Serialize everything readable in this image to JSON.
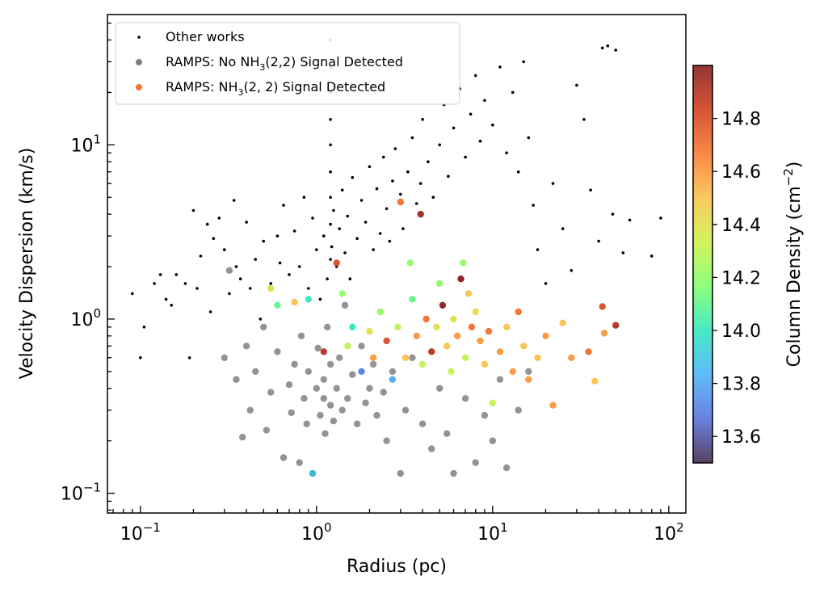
{
  "chart_data": {
    "type": "scatter",
    "x_scale": "log",
    "y_scale": "log",
    "xlabel": "Radius (pc)",
    "ylabel": "Velocity Dispersion (km/s)",
    "xlim": [
      0.065,
      125
    ],
    "ylim": [
      0.077,
      56
    ],
    "x_ticks": [
      {
        "value": 0.1,
        "base": "10",
        "exp": "−1"
      },
      {
        "value": 1,
        "base": "10",
        "exp": "0"
      },
      {
        "value": 10,
        "base": "10",
        "exp": "1"
      },
      {
        "value": 100,
        "base": "10",
        "exp": "2"
      }
    ],
    "y_ticks": [
      {
        "value": 0.1,
        "base": "10",
        "exp": "−1"
      },
      {
        "value": 1,
        "base": "10",
        "exp": "0"
      },
      {
        "value": 10,
        "base": "10",
        "exp": "1"
      }
    ],
    "legend": {
      "position": "top-left",
      "entries": [
        {
          "label": "Other works",
          "marker_color": "#000000",
          "marker": "small-dot"
        },
        {
          "label_pre": "RAMPS: No NH",
          "label_sub": "3",
          "label_post": "(2,2) Signal Detected",
          "marker_color": "#808080",
          "marker": "dot"
        },
        {
          "label_pre": "RAMPS: NH",
          "label_sub": "3",
          "label_post": "(2, 2) Signal Detected",
          "marker_color": "#f07a30",
          "marker": "dot"
        }
      ]
    },
    "colorbar": {
      "label_pre": "Column Density (cm",
      "label_sup": "−2",
      "label_post": ")",
      "vmin": 13.5,
      "vmax": 15.0,
      "ticks": [
        {
          "value": 13.6,
          "label": "13.6"
        },
        {
          "value": 13.8,
          "label": "13.8"
        },
        {
          "value": 14.0,
          "label": "14.0"
        },
        {
          "value": 14.2,
          "label": "14.2"
        },
        {
          "value": 14.4,
          "label": "14.4"
        },
        {
          "value": 14.6,
          "label": "14.6"
        },
        {
          "value": 14.8,
          "label": "14.8"
        }
      ],
      "colormap": "turbo",
      "stops": [
        "#30123b",
        "#4662d7",
        "#36aaf9",
        "#1ae4b6",
        "#72fe5e",
        "#c8ef34",
        "#faba39",
        "#f66b19",
        "#ca2a04",
        "#7a0403"
      ]
    },
    "series": [
      {
        "key": "other",
        "color": "#000000",
        "points": [
          [
            0.09,
            1.4
          ],
          [
            0.1,
            0.6
          ],
          [
            0.105,
            0.9
          ],
          [
            0.12,
            1.6
          ],
          [
            0.13,
            1.8
          ],
          [
            0.14,
            1.3
          ],
          [
            0.15,
            1.2
          ],
          [
            0.16,
            1.8
          ],
          [
            0.18,
            1.6
          ],
          [
            0.19,
            0.6
          ],
          [
            0.2,
            4.2
          ],
          [
            0.21,
            1.5
          ],
          [
            0.22,
            2.3
          ],
          [
            0.24,
            3.5
          ],
          [
            0.25,
            1.1
          ],
          [
            0.26,
            2.9
          ],
          [
            0.28,
            3.8
          ],
          [
            0.3,
            2.5
          ],
          [
            0.32,
            1.4
          ],
          [
            0.34,
            4.8
          ],
          [
            0.35,
            2.0
          ],
          [
            0.37,
            1.7
          ],
          [
            0.4,
            3.6
          ],
          [
            0.42,
            1.5
          ],
          [
            0.45,
            2.2
          ],
          [
            0.48,
            1.0
          ],
          [
            0.5,
            2.8
          ],
          [
            0.55,
            1.6
          ],
          [
            0.6,
            3.0
          ],
          [
            0.62,
            2.1
          ],
          [
            0.65,
            4.5
          ],
          [
            0.7,
            1.8
          ],
          [
            0.75,
            3.2
          ],
          [
            0.8,
            2.0
          ],
          [
            0.85,
            5.0
          ],
          [
            0.9,
            1.5
          ],
          [
            0.95,
            3.8
          ],
          [
            1.0,
            2.5
          ],
          [
            1.05,
            1.3
          ],
          [
            1.1,
            3.0
          ],
          [
            1.15,
            1.7
          ],
          [
            1.2,
            2.2
          ],
          [
            1.2,
            3.5
          ],
          [
            1.2,
            5.0
          ],
          [
            1.2,
            7.0
          ],
          [
            1.2,
            10.0
          ],
          [
            1.2,
            14.0
          ],
          [
            1.2,
            20.0
          ],
          [
            1.2,
            28.0
          ],
          [
            1.2,
            40.0
          ],
          [
            1.22,
            2.6
          ],
          [
            1.25,
            4.2
          ],
          [
            1.3,
            2.0
          ],
          [
            1.35,
            3.3
          ],
          [
            1.4,
            5.5
          ],
          [
            1.45,
            2.4
          ],
          [
            1.5,
            3.9
          ],
          [
            1.55,
            1.7
          ],
          [
            1.6,
            6.5
          ],
          [
            1.7,
            2.9
          ],
          [
            1.8,
            4.8
          ],
          [
            1.9,
            3.6
          ],
          [
            2.0,
            7.5
          ],
          [
            2.1,
            2.5
          ],
          [
            2.2,
            5.6
          ],
          [
            2.3,
            3.1
          ],
          [
            2.4,
            8.5
          ],
          [
            2.5,
            4.3
          ],
          [
            2.6,
            2.8
          ],
          [
            2.7,
            6.2
          ],
          [
            2.8,
            9.5
          ],
          [
            3.0,
            5.2
          ],
          [
            3.1,
            3.3
          ],
          [
            3.3,
            7.0
          ],
          [
            3.5,
            11.0
          ],
          [
            3.7,
            4.6
          ],
          [
            3.9,
            6.0
          ],
          [
            4.0,
            14.0
          ],
          [
            4.3,
            8.0
          ],
          [
            4.6,
            5.0
          ],
          [
            5.0,
            10.0
          ],
          [
            5.3,
            17.0
          ],
          [
            5.6,
            6.6
          ],
          [
            6.0,
            12.5
          ],
          [
            6.5,
            21.0
          ],
          [
            7.0,
            8.5
          ],
          [
            7.5,
            15.0
          ],
          [
            8.0,
            25.0
          ],
          [
            8.5,
            10.5
          ],
          [
            9.0,
            18.0
          ],
          [
            10.0,
            13.0
          ],
          [
            11.0,
            28.0
          ],
          [
            12.0,
            9.0
          ],
          [
            13.0,
            20.0
          ],
          [
            14.0,
            7.0
          ],
          [
            15.0,
            30.0
          ],
          [
            16.0,
            11.0
          ],
          [
            17.0,
            4.5
          ],
          [
            18.0,
            2.5
          ],
          [
            20.0,
            1.6
          ],
          [
            22.0,
            6.0
          ],
          [
            25.0,
            3.3
          ],
          [
            28.0,
            1.9
          ],
          [
            30.0,
            22.0
          ],
          [
            33.0,
            14.0
          ],
          [
            36.0,
            5.5
          ],
          [
            40.0,
            2.8
          ],
          [
            42.0,
            36.0
          ],
          [
            45.0,
            37.0
          ],
          [
            48.0,
            4.0
          ],
          [
            50.0,
            35.0
          ],
          [
            55.0,
            2.4
          ],
          [
            60.0,
            3.7
          ],
          [
            80.0,
            2.3
          ],
          [
            90.0,
            3.8
          ]
        ]
      },
      {
        "key": "no_signal",
        "color": "#808080",
        "points": [
          [
            0.3,
            0.6
          ],
          [
            0.32,
            1.9
          ],
          [
            0.35,
            0.45
          ],
          [
            0.38,
            0.21
          ],
          [
            0.4,
            0.7
          ],
          [
            0.42,
            0.3
          ],
          [
            0.45,
            0.5
          ],
          [
            0.5,
            0.9
          ],
          [
            0.52,
            0.23
          ],
          [
            0.55,
            0.38
          ],
          [
            0.6,
            0.65
          ],
          [
            0.65,
            0.16
          ],
          [
            0.7,
            0.42
          ],
          [
            0.72,
            0.29
          ],
          [
            0.75,
            0.55
          ],
          [
            0.8,
            0.15
          ],
          [
            0.82,
            0.8
          ],
          [
            0.85,
            0.35
          ],
          [
            0.88,
            0.25
          ],
          [
            0.9,
            0.5
          ],
          [
            0.95,
            0.13
          ],
          [
            1.0,
            0.4
          ],
          [
            1.02,
            0.68
          ],
          [
            1.05,
            0.28
          ],
          [
            1.1,
            0.35
          ],
          [
            1.1,
            0.45
          ],
          [
            1.12,
            0.22
          ],
          [
            1.15,
            0.9
          ],
          [
            1.2,
            0.32
          ],
          [
            1.2,
            0.55
          ],
          [
            1.25,
            0.26
          ],
          [
            1.3,
            0.4
          ],
          [
            1.35,
            0.6
          ],
          [
            1.4,
            0.3
          ],
          [
            1.45,
            1.2
          ],
          [
            1.5,
            0.35
          ],
          [
            1.6,
            0.48
          ],
          [
            1.7,
            0.25
          ],
          [
            1.8,
            0.7
          ],
          [
            1.9,
            0.33
          ],
          [
            2.0,
            0.4
          ],
          [
            2.1,
            0.55
          ],
          [
            2.2,
            0.28
          ],
          [
            2.4,
            0.38
          ],
          [
            2.5,
            0.2
          ],
          [
            2.7,
            0.5
          ],
          [
            3.0,
            0.13
          ],
          [
            3.2,
            0.3
          ],
          [
            3.5,
            0.6
          ],
          [
            4.0,
            0.25
          ],
          [
            4.5,
            0.18
          ],
          [
            5.0,
            0.4
          ],
          [
            5.5,
            0.22
          ],
          [
            6.0,
            0.13
          ],
          [
            7.0,
            0.35
          ],
          [
            8.0,
            0.15
          ],
          [
            9.0,
            0.28
          ],
          [
            10.0,
            0.2
          ],
          [
            11.0,
            0.45
          ],
          [
            12.0,
            0.14
          ],
          [
            14.0,
            0.3
          ],
          [
            16.0,
            0.5
          ]
        ]
      },
      {
        "key": "signal",
        "points": [
          [
            0.55,
            1.5,
            14.4
          ],
          [
            0.6,
            1.2,
            14.1
          ],
          [
            0.75,
            1.25,
            14.5
          ],
          [
            0.9,
            1.3,
            14.0
          ],
          [
            0.95,
            0.13,
            13.9
          ],
          [
            1.1,
            0.65,
            14.9
          ],
          [
            1.3,
            2.1,
            14.8
          ],
          [
            1.4,
            1.4,
            14.2
          ],
          [
            1.5,
            0.7,
            14.3
          ],
          [
            1.6,
            0.9,
            14.0
          ],
          [
            1.8,
            0.5,
            13.7
          ],
          [
            2.0,
            0.85,
            14.4
          ],
          [
            2.1,
            0.6,
            14.6
          ],
          [
            2.3,
            1.1,
            14.2
          ],
          [
            2.5,
            0.75,
            14.8
          ],
          [
            2.7,
            0.45,
            13.8
          ],
          [
            2.9,
            0.9,
            14.3
          ],
          [
            3.0,
            4.7,
            14.7
          ],
          [
            3.2,
            0.6,
            14.5
          ],
          [
            3.4,
            2.1,
            14.2
          ],
          [
            3.5,
            1.3,
            14.1
          ],
          [
            3.7,
            0.8,
            14.6
          ],
          [
            3.9,
            4.0,
            14.95
          ],
          [
            4.0,
            0.55,
            14.3
          ],
          [
            4.2,
            1.0,
            14.7
          ],
          [
            4.5,
            0.65,
            14.9
          ],
          [
            4.8,
            0.9,
            14.4
          ],
          [
            5.0,
            1.6,
            14.2
          ],
          [
            5.2,
            1.2,
            15.0
          ],
          [
            5.5,
            0.7,
            14.5
          ],
          [
            5.8,
            0.5,
            14.3
          ],
          [
            6.0,
            1.0,
            14.4
          ],
          [
            6.3,
            0.8,
            14.6
          ],
          [
            6.6,
            1.7,
            15.0
          ],
          [
            6.8,
            2.1,
            14.2
          ],
          [
            7.0,
            0.6,
            14.3
          ],
          [
            7.3,
            1.4,
            14.5
          ],
          [
            7.6,
            0.9,
            14.7
          ],
          [
            8.0,
            1.1,
            14.4
          ],
          [
            8.5,
            0.75,
            14.6
          ],
          [
            9.0,
            0.55,
            14.5
          ],
          [
            9.5,
            0.85,
            14.7
          ],
          [
            10.0,
            0.33,
            14.3
          ],
          [
            11.0,
            0.65,
            14.6
          ],
          [
            12.0,
            0.9,
            14.5
          ],
          [
            13.0,
            0.5,
            14.6
          ],
          [
            14.0,
            1.1,
            14.7
          ],
          [
            15.0,
            0.7,
            14.5
          ],
          [
            16.0,
            0.45,
            14.6
          ],
          [
            18.0,
            0.6,
            14.5
          ],
          [
            20.0,
            0.8,
            14.6
          ],
          [
            22.0,
            0.32,
            14.6
          ],
          [
            25.0,
            0.95,
            14.5
          ],
          [
            28.0,
            0.6,
            14.6
          ],
          [
            35.0,
            0.65,
            14.7
          ],
          [
            38.0,
            0.44,
            14.5
          ],
          [
            42.0,
            1.18,
            14.8
          ],
          [
            43.0,
            0.83,
            14.6
          ],
          [
            50.0,
            0.92,
            14.9
          ]
        ]
      }
    ]
  }
}
